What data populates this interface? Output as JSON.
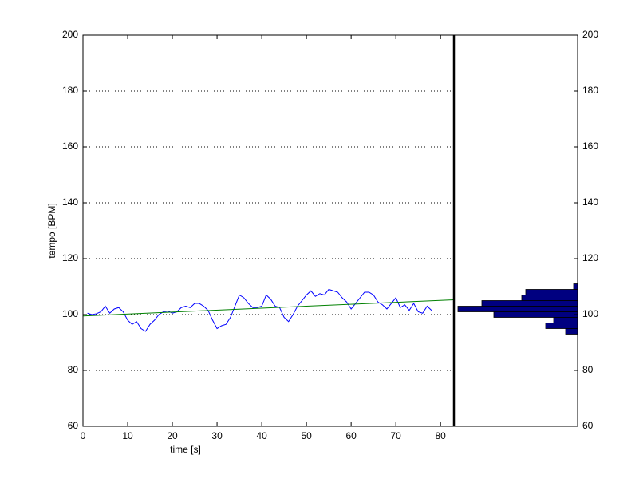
{
  "chart_data": [
    {
      "type": "line",
      "xlabel": "time [s]",
      "ylabel": "tempo [BPM]",
      "xlim": [
        0,
        83
      ],
      "xticks": [
        0,
        10,
        20,
        30,
        40,
        50,
        60,
        70,
        80
      ],
      "ylim": [
        60,
        200
      ],
      "yticks": [
        60,
        80,
        100,
        120,
        140,
        160,
        180,
        200
      ],
      "grid": "y",
      "series": [
        {
          "color": "#0000ff",
          "x": [
            1,
            2,
            3,
            4,
            5,
            6,
            7,
            8,
            9,
            10,
            11,
            12,
            13,
            14,
            15,
            16,
            17,
            18,
            19,
            20,
            21,
            22,
            23,
            24,
            25,
            26,
            27,
            28,
            29,
            30,
            31,
            32,
            33,
            34,
            35,
            36,
            37,
            38,
            39,
            40,
            41,
            42,
            43,
            44,
            45,
            46,
            47,
            48,
            49,
            50,
            51,
            52,
            53,
            54,
            55,
            56,
            57,
            58,
            59,
            60,
            61,
            62,
            63,
            64,
            65,
            66,
            67,
            68,
            69,
            70,
            71,
            72,
            73,
            74,
            75,
            76,
            77,
            78
          ],
          "values": [
            100.5,
            100,
            100.3,
            101,
            103,
            100.5,
            102,
            102.5,
            101,
            98,
            96.5,
            97.5,
            95,
            94,
            96.5,
            98,
            100,
            101,
            101.3,
            100.5,
            101,
            102.5,
            103,
            102.5,
            104,
            104,
            103,
            101.5,
            98,
            95,
            96,
            96.5,
            99,
            103,
            107,
            106,
            104,
            102.5,
            102.5,
            103,
            107,
            105.5,
            103,
            102.5,
            99,
            97.5,
            100,
            103,
            105,
            107,
            108.5,
            106.5,
            107.5,
            107,
            109,
            108.5,
            108,
            106,
            104.5,
            102,
            104,
            106,
            108,
            108,
            107,
            104.5,
            103.5,
            102,
            104,
            106,
            102.5,
            103.5,
            101.5,
            104,
            101,
            100.5,
            103,
            101.5
          ]
        },
        {
          "color": "#008000",
          "x": [
            0,
            83
          ],
          "values": [
            99.5,
            105.3
          ]
        }
      ]
    },
    {
      "type": "histogram",
      "orientation": "horizontal",
      "direction": "reverse",
      "bins": [
        93,
        95,
        97,
        99,
        101,
        103,
        105,
        107,
        109,
        111
      ],
      "counts": [
        3,
        8,
        6,
        21,
        30,
        24,
        14,
        13,
        1
      ],
      "xlim": [
        0,
        31
      ],
      "ylim": [
        60,
        200
      ],
      "yticks": [
        60,
        80,
        100,
        120,
        140,
        160,
        180,
        200
      ],
      "color": "#000080",
      "edgecolor": "#000000"
    }
  ]
}
